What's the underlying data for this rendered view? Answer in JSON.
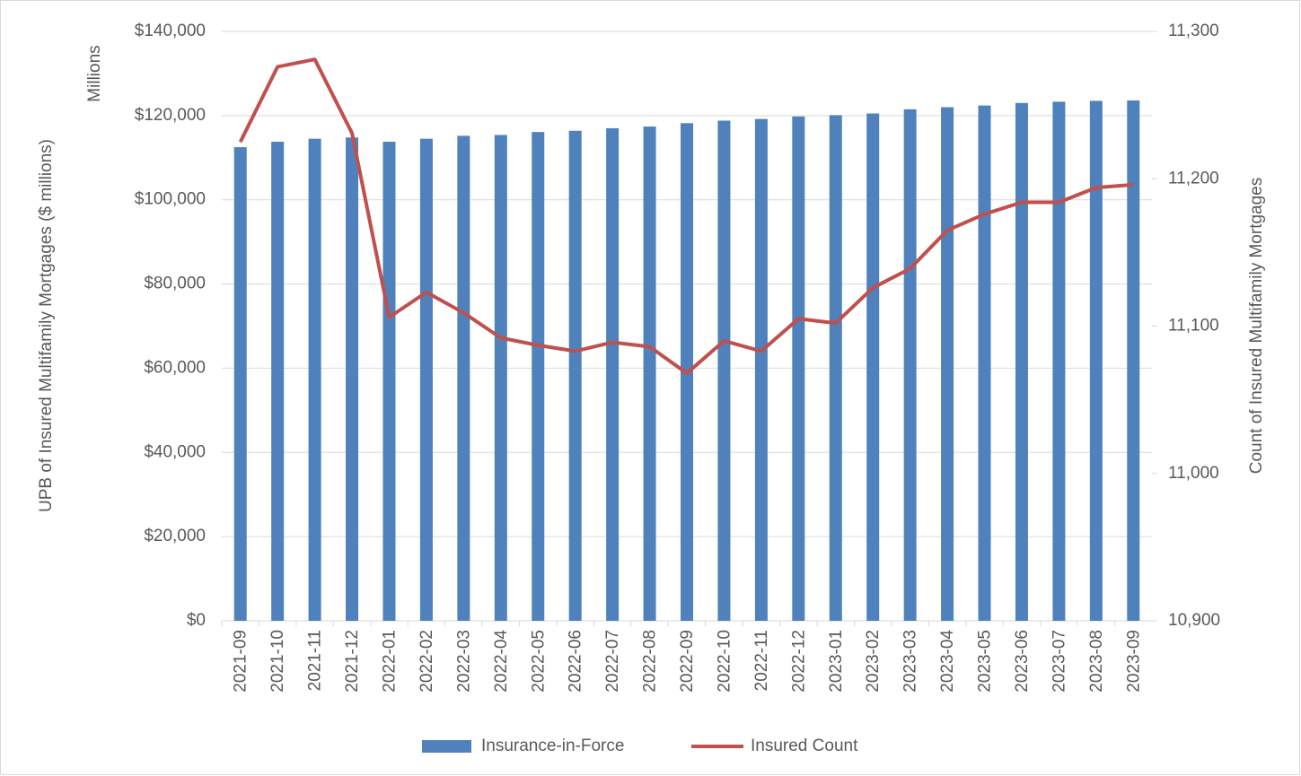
{
  "chart_data": {
    "type": "bar-line",
    "annotation": "Millions",
    "y_label": "UPB of Insured Multifamily Mortgages ($ millions)",
    "y2_label": "Count of Insured Multifamily Mortgages",
    "categories": [
      "2021-09",
      "2021-10",
      "2021-11",
      "2021-12",
      "2022-01",
      "2022-02",
      "2022-03",
      "2022-04",
      "2022-05",
      "2022-06",
      "2022-07",
      "2022-08",
      "2022-09",
      "2022-10",
      "2022-11",
      "2022-12",
      "2023-01",
      "2023-02",
      "2023-03",
      "2023-04",
      "2023-05",
      "2023-06",
      "2023-07",
      "2023-08",
      "2023-09"
    ],
    "series": [
      {
        "name": "Insurance-in-Force",
        "type": "bar",
        "color": "#4f81bd",
        "values": [
          112500,
          113800,
          114500,
          114800,
          113800,
          114500,
          115200,
          115400,
          116100,
          116400,
          117000,
          117400,
          118200,
          118800,
          119200,
          119800,
          120100,
          120500,
          121500,
          122000,
          122400,
          123000,
          123300,
          123500,
          123600
        ]
      },
      {
        "name": "Insured Count",
        "type": "line",
        "axis": "y2",
        "color": "#c0504d",
        "values": [
          11225,
          11276,
          11281,
          11231,
          11106,
          11123,
          11109,
          11092,
          11087,
          11083,
          11089,
          11086,
          11068,
          11090,
          11083,
          11105,
          11102,
          11126,
          11139,
          11165,
          11176,
          11184,
          11184,
          11194,
          11196
        ]
      }
    ],
    "ylim": [
      0,
      140000
    ],
    "yticks": [
      {
        "value": 0,
        "label": "$0"
      },
      {
        "value": 20000,
        "label": "$20,000"
      },
      {
        "value": 40000,
        "label": "$40,000"
      },
      {
        "value": 60000,
        "label": "$60,000"
      },
      {
        "value": 80000,
        "label": "$80,000"
      },
      {
        "value": 100000,
        "label": "$100,000"
      },
      {
        "value": 120000,
        "label": "$120,000"
      },
      {
        "value": 140000,
        "label": "$140,000"
      }
    ],
    "y2lim": [
      10900,
      11300
    ],
    "y2ticks": [
      {
        "value": 10900,
        "label": "10,900"
      },
      {
        "value": 11000,
        "label": "11,000"
      },
      {
        "value": 11100,
        "label": "11,100"
      },
      {
        "value": 11200,
        "label": "11,200"
      },
      {
        "value": 11300,
        "label": "11,300"
      }
    ],
    "grid": true,
    "legend": "bottom"
  }
}
